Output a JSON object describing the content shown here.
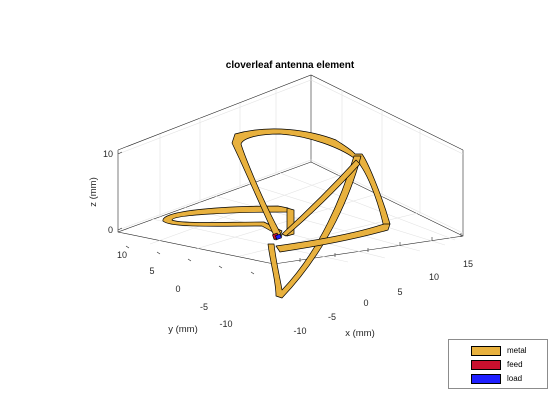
{
  "figure": {
    "title": "cloverleaf antenna element",
    "xlabel": "x (mm)",
    "ylabel": "y (mm)",
    "zlabel": "z (mm)",
    "x_ticks": [
      "-10",
      "-5",
      "0",
      "5",
      "10",
      "15"
    ],
    "y_ticks": [
      "10",
      "5",
      "0",
      "-5",
      "-10"
    ],
    "z_ticks": [
      "10",
      "0"
    ]
  },
  "legend": {
    "placement": "bottom-right",
    "items": [
      {
        "label": "metal",
        "color": "#e8b13e"
      },
      {
        "label": "feed",
        "color": "#c8102e"
      },
      {
        "label": "load",
        "color": "#1f1fff"
      }
    ]
  },
  "colors": {
    "metal": "#e8b13e",
    "metal_edge": "#000000",
    "feed": "#c8102e",
    "load": "#1f1fff",
    "grid": "#e3e3e3",
    "axis": "#262626"
  }
}
